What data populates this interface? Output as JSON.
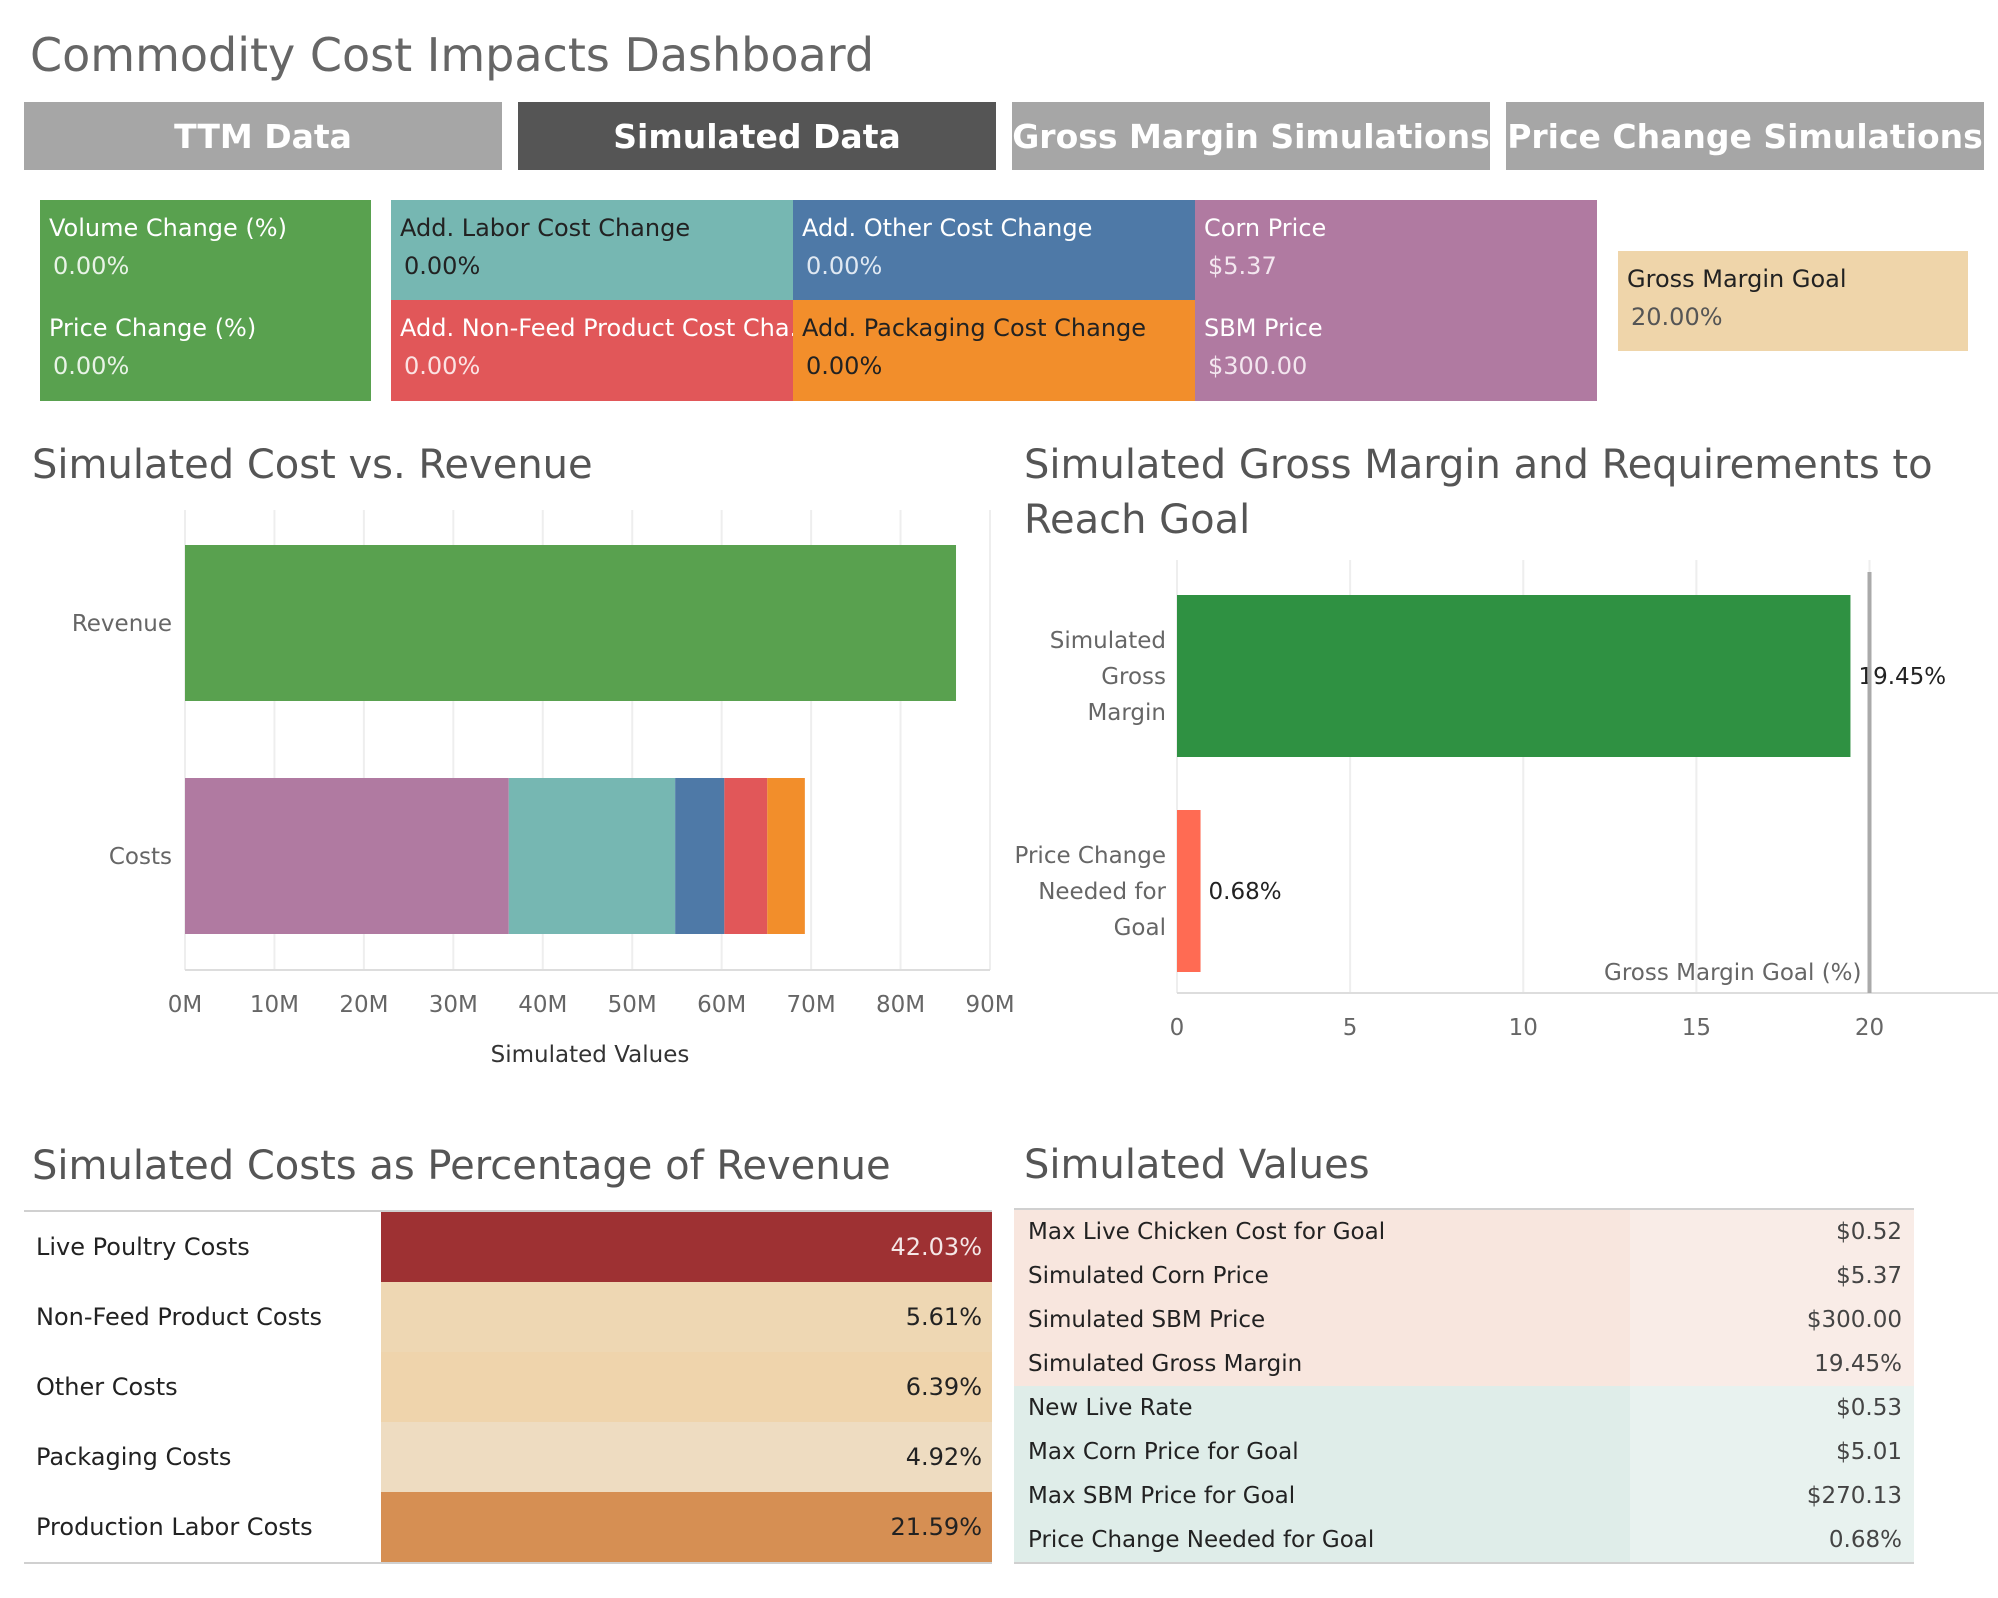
{
  "dashboard": {
    "title": "Commodity Cost Impacts Dashboard"
  },
  "tabs": [
    {
      "label": "TTM Data",
      "active": false
    },
    {
      "label": "Simulated Data",
      "active": true
    },
    {
      "label": "Gross Margin Simulations",
      "active": false
    },
    {
      "label": "Price Change Simulations",
      "active": false
    }
  ],
  "params": {
    "volume_change": {
      "label": "Volume Change (%)",
      "value": "0.00%"
    },
    "price_change": {
      "label": "Price Change (%)",
      "value": "0.00%"
    },
    "labor": {
      "label": "Add. Labor Cost Change",
      "value": "0.00%"
    },
    "other": {
      "label": "Add. Other Cost Change",
      "value": "0.00%"
    },
    "corn": {
      "label": "Corn Price",
      "value": "$5.37"
    },
    "nonfeed": {
      "label": "Add. Non-Feed Product Cost Cha..",
      "value": "0.00%"
    },
    "packaging": {
      "label": "Add. Packaging Cost Change",
      "value": "0.00%"
    },
    "sbm": {
      "label": "SBM Price",
      "value": "$300.00"
    },
    "gm_goal": {
      "label": "Gross Margin Goal",
      "value": "20.00%"
    }
  },
  "colors": {
    "green": "#59a14f",
    "teal": "#76b7b2",
    "blue": "#4e79a7",
    "purple": "#b07aa1",
    "red": "#e15759",
    "orange": "#f28e2b",
    "tan": "#efd5aa",
    "dark_green": "#2f9142",
    "coral": "#ff6b53"
  },
  "cost_revenue": {
    "title": "Simulated Cost vs. Revenue",
    "xlabel": "Simulated Values"
  },
  "gm_chart": {
    "title_line1": "Simulated Gross Margin and Requirements to",
    "title_line2": "Reach Goal",
    "goal_label": "Gross Margin Goal (%)"
  },
  "chart_data": [
    {
      "type": "bar",
      "title": "Simulated Cost vs. Revenue",
      "xlabel": "Simulated Values",
      "ylabel": "",
      "orientation": "horizontal",
      "stacked": true,
      "categories": [
        "Revenue",
        "Costs"
      ],
      "xlim": [
        0,
        90
      ],
      "x_unit": "M",
      "tick_labels": [
        "0M",
        "10M",
        "20M",
        "30M",
        "40M",
        "50M",
        "60M",
        "70M",
        "80M",
        "90M"
      ],
      "tick_values": [
        0,
        10,
        20,
        30,
        40,
        50,
        60,
        70,
        80,
        90
      ],
      "series": [
        {
          "name": "Revenue",
          "color": "#59a14f",
          "values": [
            86.2,
            0
          ]
        },
        {
          "name": "Live Poultry Costs",
          "color": "#b07aa1",
          "values": [
            0,
            36.2
          ]
        },
        {
          "name": "Production Labor Costs",
          "color": "#76b7b2",
          "values": [
            0,
            18.6
          ]
        },
        {
          "name": "Other Costs",
          "color": "#4e79a7",
          "values": [
            0,
            5.5
          ]
        },
        {
          "name": "Non-Feed Product Costs",
          "color": "#e15759",
          "values": [
            0,
            4.8
          ]
        },
        {
          "name": "Packaging Costs",
          "color": "#f28e2b",
          "values": [
            0,
            4.2
          ]
        }
      ]
    },
    {
      "type": "bar",
      "title": "Simulated Gross Margin and Requirements to Reach Goal",
      "orientation": "horizontal",
      "categories": [
        "Simulated Gross Margin",
        "Price Change Needed for Goal"
      ],
      "category_lines": [
        [
          "Simulated",
          "Gross",
          "Margin"
        ],
        [
          "Price Change",
          "Needed for",
          "Goal"
        ]
      ],
      "values": [
        19.45,
        0.68
      ],
      "value_labels": [
        "19.45%",
        "0.68%"
      ],
      "colors": [
        "#2f9142",
        "#ff6b53"
      ],
      "xlim": [
        0,
        24
      ],
      "tick_labels": [
        "0",
        "5",
        "10",
        "15",
        "20"
      ],
      "tick_values": [
        0,
        5,
        10,
        15,
        20
      ],
      "reference_line": {
        "value": 20,
        "label": "Gross Margin Goal (%)"
      }
    }
  ],
  "pct_table": {
    "title": "Simulated Costs as Percentage of Revenue",
    "rows": [
      {
        "label": "Live Poultry Costs",
        "value": "42.03%",
        "bg": "#9e3133",
        "fg": "#f5e6e6"
      },
      {
        "label": "Non-Feed Product Costs",
        "value": "5.61%",
        "bg": "#eed7b3",
        "fg": "#222222"
      },
      {
        "label": "Other Costs",
        "value": "6.39%",
        "bg": "#efd4ac",
        "fg": "#222222"
      },
      {
        "label": "Packaging Costs",
        "value": "4.92%",
        "bg": "#eedcc1",
        "fg": "#222222"
      },
      {
        "label": "Production Labor Costs",
        "value": "21.59%",
        "bg": "#d68f53",
        "fg": "#222222"
      }
    ]
  },
  "values_table": {
    "title": "Simulated Values",
    "rows": [
      {
        "label": "Max Live Chicken Cost for Goal",
        "value": "$0.52",
        "group": "pink"
      },
      {
        "label": "Simulated Corn Price",
        "value": "$5.37",
        "group": "pink"
      },
      {
        "label": "Simulated SBM Price",
        "value": "$300.00",
        "group": "pink"
      },
      {
        "label": "Simulated Gross Margin",
        "value": "19.45%",
        "group": "pink"
      },
      {
        "label": "New Live Rate",
        "value": "$0.53",
        "group": "teal"
      },
      {
        "label": "Max Corn Price for Goal",
        "value": "$5.01",
        "group": "teal"
      },
      {
        "label": "Max SBM Price for Goal",
        "value": "$270.13",
        "group": "teal"
      },
      {
        "label": "Price Change Needed for Goal",
        "value": "0.68%",
        "group": "teal"
      }
    ]
  }
}
